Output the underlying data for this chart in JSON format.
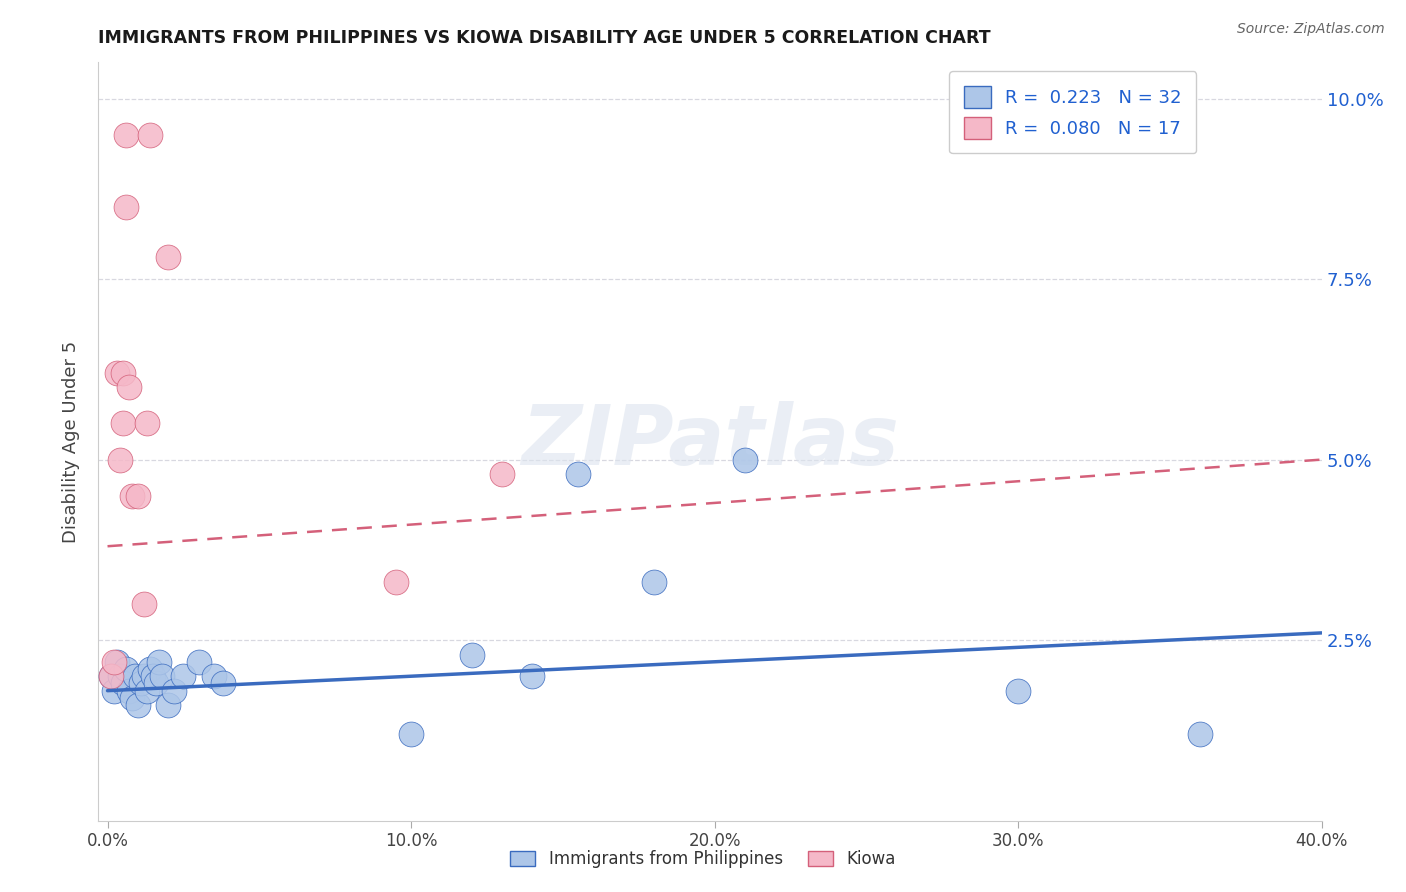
{
  "title": "IMMIGRANTS FROM PHILIPPINES VS KIOWA DISABILITY AGE UNDER 5 CORRELATION CHART",
  "source": "Source: ZipAtlas.com",
  "ylabel": "Disability Age Under 5",
  "xlim": [
    0.0,
    0.4
  ],
  "ylim": [
    0.0,
    0.105
  ],
  "xticks": [
    0.0,
    0.1,
    0.2,
    0.3,
    0.4
  ],
  "yticks": [
    0.025,
    0.05,
    0.075,
    0.1
  ],
  "ytick_labels": [
    "2.5%",
    "5.0%",
    "7.5%",
    "10.0%"
  ],
  "xtick_labels": [
    "0.0%",
    "10.0%",
    "20.0%",
    "30.0%",
    "40.0%"
  ],
  "philippines_color": "#adc6e8",
  "kiowa_color": "#f5b8c8",
  "philippines_line_color": "#3a6bbf",
  "kiowa_line_color": "#d4607a",
  "philippines_R": 0.223,
  "philippines_N": 32,
  "kiowa_R": 0.08,
  "kiowa_N": 17,
  "legend_text_color": "#2060d0",
  "philippines_x": [
    0.001,
    0.002,
    0.003,
    0.004,
    0.005,
    0.006,
    0.007,
    0.008,
    0.009,
    0.01,
    0.011,
    0.012,
    0.013,
    0.014,
    0.015,
    0.016,
    0.017,
    0.018,
    0.02,
    0.022,
    0.025,
    0.03,
    0.035,
    0.038,
    0.1,
    0.12,
    0.14,
    0.155,
    0.18,
    0.21,
    0.3,
    0.36
  ],
  "philippines_y": [
    0.02,
    0.018,
    0.022,
    0.02,
    0.019,
    0.021,
    0.018,
    0.017,
    0.02,
    0.016,
    0.019,
    0.02,
    0.018,
    0.021,
    0.02,
    0.019,
    0.022,
    0.02,
    0.016,
    0.018,
    0.02,
    0.022,
    0.02,
    0.019,
    0.012,
    0.023,
    0.02,
    0.048,
    0.033,
    0.05,
    0.018,
    0.012
  ],
  "kiowa_x": [
    0.001,
    0.002,
    0.003,
    0.004,
    0.005,
    0.005,
    0.006,
    0.006,
    0.007,
    0.008,
    0.01,
    0.012,
    0.013,
    0.014,
    0.02,
    0.095,
    0.13
  ],
  "kiowa_y": [
    0.02,
    0.022,
    0.062,
    0.05,
    0.062,
    0.055,
    0.095,
    0.085,
    0.06,
    0.045,
    0.045,
    0.03,
    0.055,
    0.095,
    0.078,
    0.033,
    0.048
  ],
  "ph_trend_x": [
    0.0,
    0.4
  ],
  "ph_trend_y": [
    0.018,
    0.026
  ],
  "ki_trend_x": [
    0.0,
    0.4
  ],
  "ki_trend_y": [
    0.038,
    0.05
  ],
  "background_color": "#ffffff",
  "grid_color": "#d8d8e0",
  "watermark_text": "ZIPatlas",
  "watermark_color": "#dde4ef",
  "watermark_alpha": 0.6,
  "bottom_legend_items": [
    {
      "label": "Immigrants from Philippines",
      "color": "#adc6e8",
      "edge": "#3a6bbf"
    },
    {
      "label": "Kiowa",
      "color": "#f5b8c8",
      "edge": "#d4607a"
    }
  ]
}
